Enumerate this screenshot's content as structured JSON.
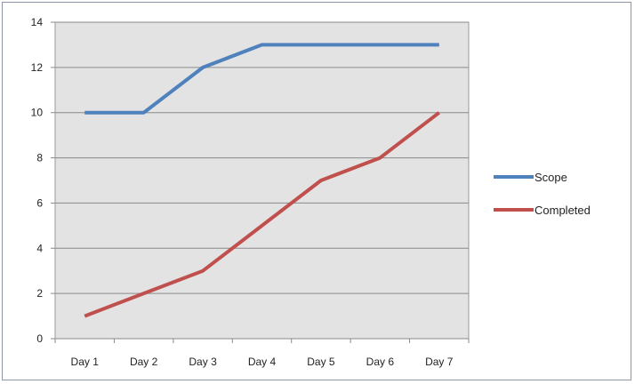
{
  "chart_data": {
    "type": "line",
    "categories": [
      "Day 1",
      "Day 2",
      "Day 3",
      "Day 4",
      "Day 5",
      "Day 6",
      "Day 7"
    ],
    "series": [
      {
        "name": "Scope",
        "values": [
          10,
          10,
          12,
          13,
          13,
          13,
          13
        ],
        "color": "#4f81bd"
      },
      {
        "name": "Completed",
        "values": [
          1,
          2,
          3,
          5,
          7,
          8,
          10
        ],
        "color": "#c0504d"
      }
    ],
    "ylim": [
      0,
      14
    ],
    "yticks": [
      0,
      2,
      4,
      6,
      8,
      10,
      12,
      14
    ],
    "grid": true,
    "legend_position": "right",
    "plot_background": "#e3e3e3"
  }
}
